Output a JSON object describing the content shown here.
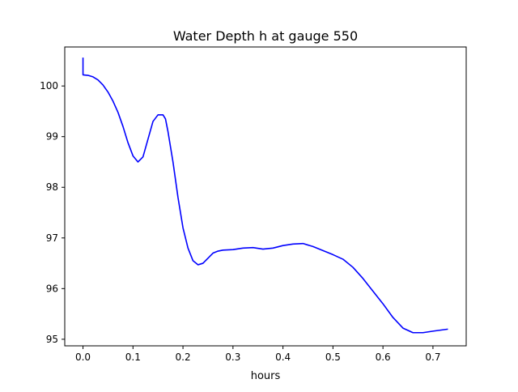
{
  "chart_data": {
    "type": "line",
    "title": "Water Depth h at gauge 550",
    "xlabel": "hours",
    "ylabel": "",
    "xlim": [
      -0.0365,
      0.7665
    ],
    "ylim": [
      94.87,
      100.77
    ],
    "grid": false,
    "legend": "none",
    "x_ticks": [
      0.0,
      0.1,
      0.2,
      0.3,
      0.4,
      0.5,
      0.6,
      0.7
    ],
    "x_tick_labels": [
      "0.0",
      "0.1",
      "0.2",
      "0.3",
      "0.4",
      "0.5",
      "0.6",
      "0.7"
    ],
    "y_ticks": [
      95,
      96,
      97,
      98,
      99,
      100
    ],
    "y_tick_labels": [
      "95",
      "96",
      "97",
      "98",
      "99",
      "100"
    ],
    "series": [
      {
        "color": "#0000ff",
        "x": [
          0.0,
          0.0,
          0.0,
          0.01,
          0.02,
          0.03,
          0.04,
          0.05,
          0.06,
          0.07,
          0.08,
          0.09,
          0.1,
          0.11,
          0.12,
          0.13,
          0.14,
          0.15,
          0.16,
          0.165,
          0.17,
          0.18,
          0.19,
          0.2,
          0.21,
          0.22,
          0.23,
          0.24,
          0.25,
          0.26,
          0.27,
          0.28,
          0.3,
          0.32,
          0.34,
          0.36,
          0.38,
          0.4,
          0.42,
          0.44,
          0.46,
          0.48,
          0.5,
          0.52,
          0.54,
          0.56,
          0.58,
          0.6,
          0.62,
          0.64,
          0.66,
          0.68,
          0.7,
          0.73
        ],
        "y": [
          100.56,
          100.22,
          100.22,
          100.21,
          100.18,
          100.12,
          100.02,
          99.88,
          99.7,
          99.48,
          99.2,
          98.88,
          98.62,
          98.5,
          98.6,
          98.95,
          99.3,
          99.43,
          99.43,
          99.35,
          99.1,
          98.5,
          97.8,
          97.2,
          96.8,
          96.55,
          96.47,
          96.5,
          96.6,
          96.7,
          96.74,
          96.76,
          96.77,
          96.8,
          96.81,
          96.78,
          96.8,
          96.85,
          96.88,
          96.89,
          96.83,
          96.75,
          96.67,
          96.58,
          96.42,
          96.2,
          95.95,
          95.7,
          95.43,
          95.22,
          95.13,
          95.13,
          95.16,
          95.2
        ]
      }
    ]
  }
}
